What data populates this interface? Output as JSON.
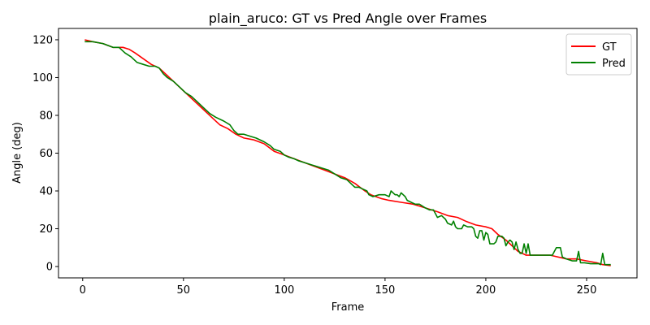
{
  "chart_data": {
    "type": "line",
    "title": "plain_aruco: GT vs Pred Angle over Frames",
    "xlabel": "Frame",
    "ylabel": "Angle (deg)",
    "xlim": [
      -12,
      275
    ],
    "ylim": [
      -6,
      126
    ],
    "xticks": [
      0,
      50,
      100,
      150,
      200,
      250
    ],
    "yticks": [
      0,
      20,
      40,
      60,
      80,
      100,
      120
    ],
    "grid": false,
    "legend_position": "top-right",
    "series": [
      {
        "name": "GT",
        "color": "#ff0000",
        "points": [
          [
            1,
            120
          ],
          [
            5,
            119
          ],
          [
            10,
            118
          ],
          [
            15,
            116
          ],
          [
            20,
            116
          ],
          [
            23,
            115
          ],
          [
            26,
            113
          ],
          [
            30,
            110
          ],
          [
            34,
            107
          ],
          [
            38,
            105
          ],
          [
            42,
            101
          ],
          [
            46,
            97
          ],
          [
            50,
            93
          ],
          [
            55,
            88
          ],
          [
            60,
            83
          ],
          [
            64,
            79
          ],
          [
            68,
            75
          ],
          [
            72,
            73
          ],
          [
            76,
            70
          ],
          [
            80,
            68
          ],
          [
            85,
            67
          ],
          [
            90,
            65
          ],
          [
            95,
            61
          ],
          [
            100,
            59
          ],
          [
            105,
            57
          ],
          [
            110,
            55
          ],
          [
            115,
            53
          ],
          [
            120,
            51
          ],
          [
            125,
            49
          ],
          [
            130,
            47
          ],
          [
            135,
            44
          ],
          [
            140,
            40
          ],
          [
            143,
            38
          ],
          [
            148,
            36
          ],
          [
            152,
            35
          ],
          [
            158,
            34
          ],
          [
            164,
            33
          ],
          [
            170,
            31
          ],
          [
            176,
            29
          ],
          [
            181,
            27
          ],
          [
            186,
            26
          ],
          [
            190,
            24
          ],
          [
            195,
            22
          ],
          [
            200,
            21
          ],
          [
            203,
            20
          ],
          [
            206,
            17
          ],
          [
            210,
            14
          ],
          [
            213,
            11
          ],
          [
            216,
            8
          ],
          [
            220,
            6
          ],
          [
            225,
            6
          ],
          [
            232,
            6
          ],
          [
            240,
            4
          ],
          [
            245,
            4
          ],
          [
            250,
            3
          ],
          [
            255,
            2
          ],
          [
            258,
            1
          ],
          [
            262,
            0.5
          ]
        ]
      },
      {
        "name": "Pred",
        "color": "#008000",
        "points": [
          [
            1,
            119
          ],
          [
            5,
            119
          ],
          [
            10,
            118
          ],
          [
            15,
            116
          ],
          [
            18,
            116
          ],
          [
            21,
            113
          ],
          [
            24,
            111
          ],
          [
            27,
            108
          ],
          [
            30,
            107
          ],
          [
            33,
            106
          ],
          [
            36,
            106
          ],
          [
            38,
            105
          ],
          [
            40,
            102
          ],
          [
            42,
            100
          ],
          [
            45,
            98
          ],
          [
            48,
            95
          ],
          [
            51,
            92
          ],
          [
            54,
            90
          ],
          [
            57,
            87
          ],
          [
            60,
            84
          ],
          [
            63,
            81
          ],
          [
            66,
            79
          ],
          [
            70,
            77
          ],
          [
            73,
            75
          ],
          [
            75,
            72
          ],
          [
            77,
            70
          ],
          [
            80,
            70
          ],
          [
            83,
            69
          ],
          [
            86,
            68
          ],
          [
            90,
            66
          ],
          [
            93,
            64
          ],
          [
            95,
            62
          ],
          [
            98,
            61
          ],
          [
            100,
            59
          ],
          [
            102,
            58
          ],
          [
            105,
            57
          ],
          [
            107,
            56
          ],
          [
            110,
            55
          ],
          [
            113,
            54
          ],
          [
            116,
            53
          ],
          [
            119,
            52
          ],
          [
            122,
            51
          ],
          [
            125,
            49
          ],
          [
            128,
            47
          ],
          [
            131,
            46
          ],
          [
            133,
            44
          ],
          [
            135,
            42
          ],
          [
            137,
            42
          ],
          [
            139,
            41
          ],
          [
            141,
            40
          ],
          [
            142,
            38
          ],
          [
            144,
            37
          ],
          [
            147,
            38
          ],
          [
            150,
            38
          ],
          [
            152,
            37
          ],
          [
            153,
            40
          ],
          [
            155,
            38
          ],
          [
            156,
            38
          ],
          [
            157,
            37
          ],
          [
            158,
            39
          ],
          [
            160,
            37
          ],
          [
            161,
            35
          ],
          [
            163,
            34
          ],
          [
            165,
            33
          ],
          [
            167,
            33
          ],
          [
            170,
            31
          ],
          [
            172,
            30
          ],
          [
            174,
            30
          ],
          [
            175,
            28
          ],
          [
            176,
            26
          ],
          [
            178,
            27
          ],
          [
            179,
            26
          ],
          [
            180,
            25
          ],
          [
            181,
            23
          ],
          [
            183,
            22
          ],
          [
            184,
            24
          ],
          [
            185,
            21
          ],
          [
            186,
            20
          ],
          [
            188,
            20
          ],
          [
            189,
            22
          ],
          [
            191,
            21
          ],
          [
            193,
            21
          ],
          [
            194,
            20
          ],
          [
            195,
            16
          ],
          [
            196,
            15
          ],
          [
            197,
            19
          ],
          [
            198,
            19
          ],
          [
            199,
            14
          ],
          [
            200,
            18
          ],
          [
            201,
            17
          ],
          [
            202,
            12
          ],
          [
            204,
            12
          ],
          [
            205,
            13
          ],
          [
            206,
            16
          ],
          [
            208,
            16
          ],
          [
            209,
            15
          ],
          [
            210,
            11
          ],
          [
            211,
            13
          ],
          [
            212,
            14
          ],
          [
            213,
            13
          ],
          [
            214,
            9
          ],
          [
            215,
            13
          ],
          [
            216,
            9
          ],
          [
            217,
            7
          ],
          [
            218,
            7
          ],
          [
            219,
            12
          ],
          [
            220,
            7
          ],
          [
            221,
            12
          ],
          [
            222,
            6
          ],
          [
            224,
            6
          ],
          [
            226,
            6
          ],
          [
            230,
            6
          ],
          [
            233,
            6
          ],
          [
            235,
            10
          ],
          [
            237,
            10
          ],
          [
            238,
            5
          ],
          [
            240,
            4
          ],
          [
            243,
            3
          ],
          [
            245,
            3
          ],
          [
            246,
            8
          ],
          [
            247,
            2
          ],
          [
            249,
            2
          ],
          [
            252,
            1.5
          ],
          [
            256,
            1.5
          ],
          [
            257,
            1
          ],
          [
            258,
            7
          ],
          [
            259,
            1
          ],
          [
            262,
            1
          ]
        ]
      }
    ]
  }
}
